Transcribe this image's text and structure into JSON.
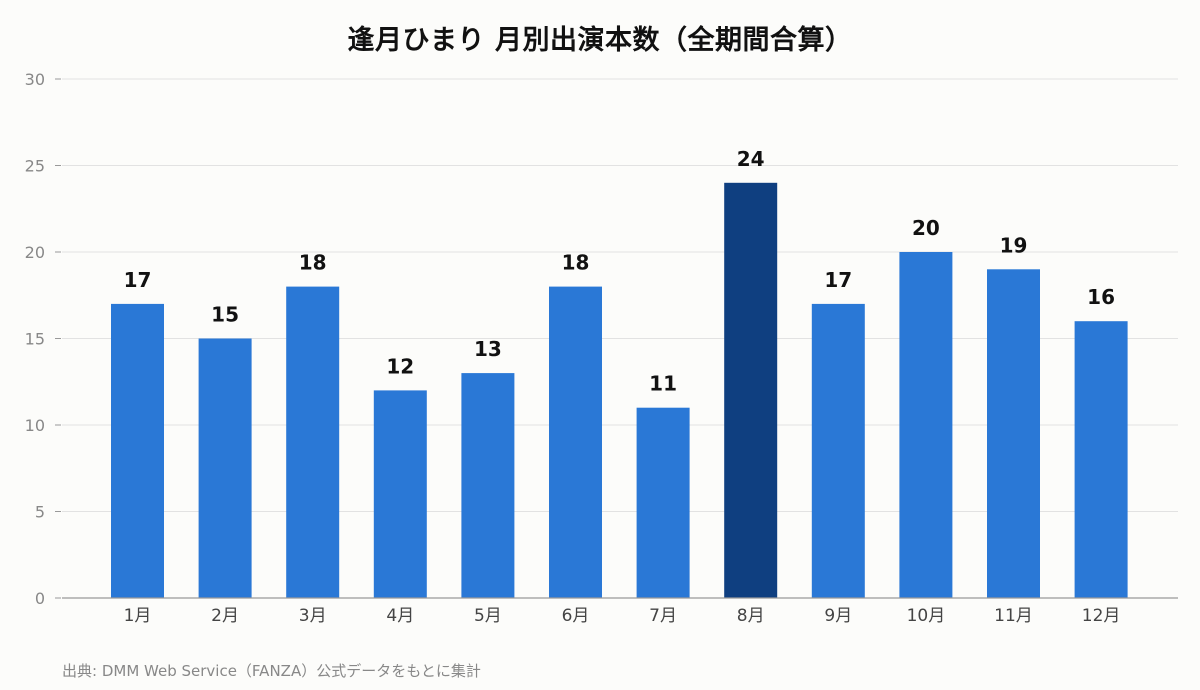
{
  "chart_data": {
    "type": "bar",
    "title": "逢月ひまり 月別出演本数（全期間合算）",
    "categories": [
      "1月",
      "2月",
      "3月",
      "4月",
      "5月",
      "6月",
      "7月",
      "8月",
      "9月",
      "10月",
      "11月",
      "12月"
    ],
    "values": [
      17,
      15,
      18,
      12,
      13,
      18,
      11,
      24,
      17,
      20,
      19,
      16
    ],
    "highlight_category": "8月",
    "xlabel": "",
    "ylabel": "",
    "ylim": [
      0,
      30
    ],
    "yticks": [
      0,
      5,
      10,
      15,
      20,
      25,
      30
    ],
    "grid": true,
    "legend": "none",
    "colors": {
      "bar": "#2a78d6",
      "highlight": "#0f3f80",
      "grid": "#e2e2e2",
      "axis": "#999999",
      "tick_label": "#888888",
      "x_label": "#444444",
      "value_label": "#111111"
    }
  },
  "footer": {
    "source": "出典: DMM Web Service（FANZA）公式データをもとに集計"
  }
}
